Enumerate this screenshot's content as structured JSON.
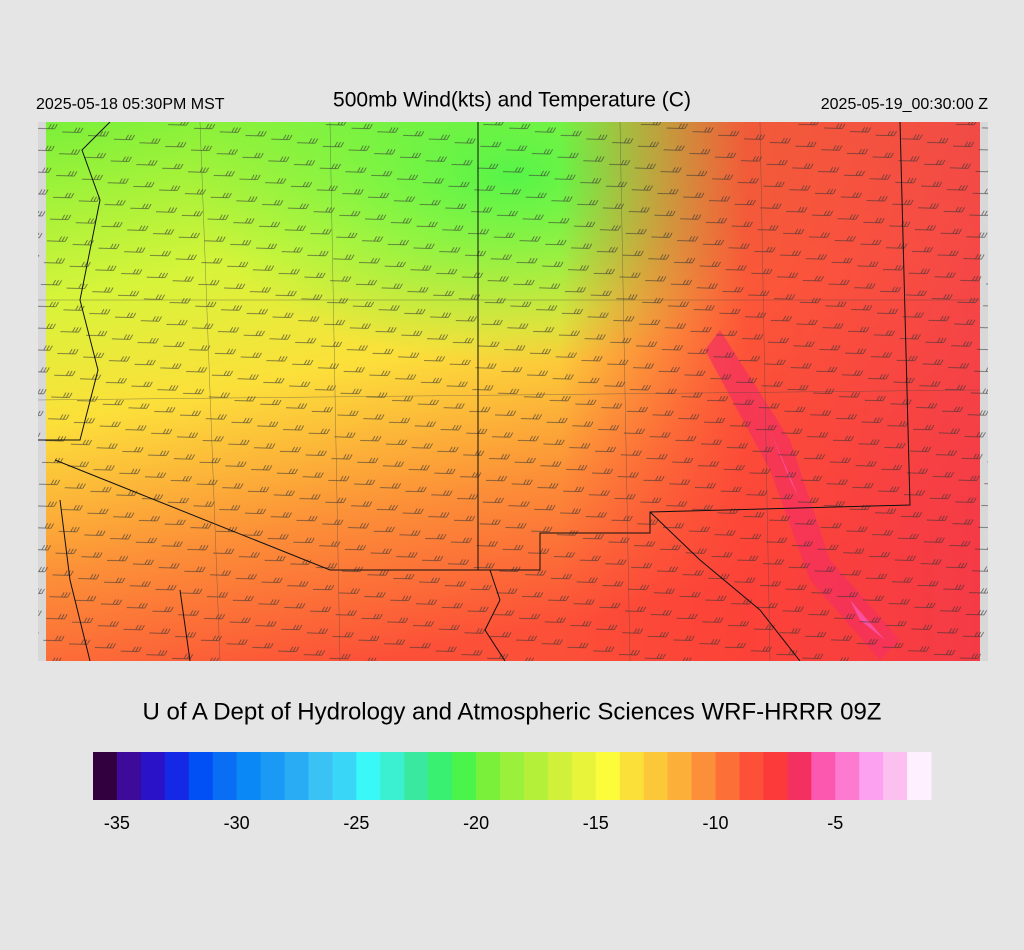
{
  "header": {
    "title": "500mb Wind(kts) and Temperature (C)",
    "local_time": "2025-05-18 05:30PM MST",
    "valid_time": "2025-05-19_00:30:00 Z"
  },
  "credit": "U of A Dept of Hydrology and Atmospheric Sciences WRF-HRRR 09Z",
  "colorbar": {
    "lim": [
      -36,
      -1
    ],
    "ticks": [
      -35,
      -30,
      -25,
      -20,
      -15,
      -10,
      -5
    ],
    "colors": [
      "#33003f",
      "#3d0a99",
      "#2a12c8",
      "#1428e6",
      "#0050f5",
      "#0a6ef5",
      "#0a88f5",
      "#1a9af5",
      "#2aacf5",
      "#3ac2f5",
      "#3ad6f8",
      "#3af8f8",
      "#3af0d0",
      "#3ae8a0",
      "#3af070",
      "#4af44a",
      "#7af03a",
      "#9af03a",
      "#b4f03a",
      "#d0f03a",
      "#e8f43a",
      "#fcfc3a",
      "#fce03a",
      "#fcc83a",
      "#fcb03a",
      "#fc903a",
      "#fc7038",
      "#fc5038",
      "#fc3a3a",
      "#f43060",
      "#fc58b0",
      "#fc7ad0",
      "#fca0f0",
      "#fcc0f0",
      "#fff0ff"
    ]
  }
}
